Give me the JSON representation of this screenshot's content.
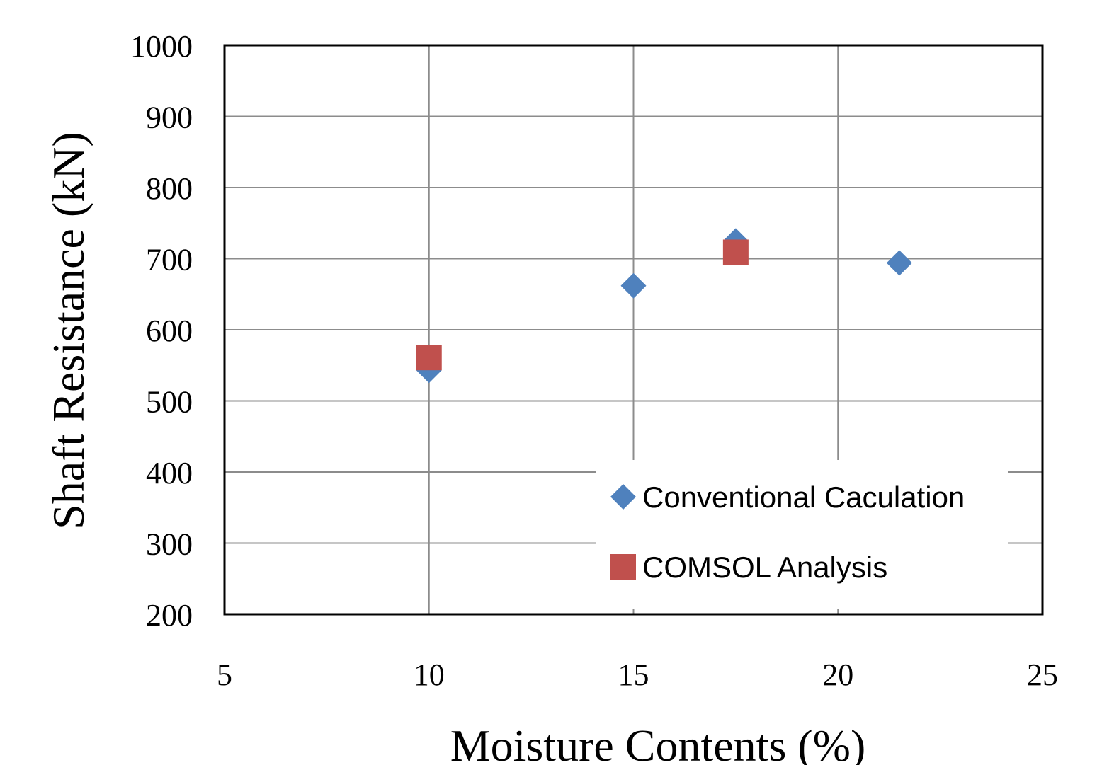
{
  "chart_data": {
    "type": "scatter",
    "title": "",
    "xlabel": "Moisture Contents (%)",
    "ylabel": "Shaft Resistance (kN)",
    "xlim": [
      5,
      25
    ],
    "ylim": [
      200,
      1000
    ],
    "xticks": [
      5,
      10,
      15,
      20,
      25
    ],
    "yticks": [
      200,
      300,
      400,
      500,
      600,
      700,
      800,
      900,
      1000
    ],
    "grid": true,
    "legend_position": "bottom-right",
    "series": [
      {
        "name": "Conventional Caculation",
        "marker": "diamond",
        "color": "#4f81bd",
        "x": [
          10,
          15,
          17.5,
          21.5
        ],
        "y": [
          543,
          662,
          725,
          694
        ]
      },
      {
        "name": "COMSOL Analysis",
        "marker": "square",
        "color": "#c0504d",
        "x": [
          10,
          17.5
        ],
        "y": [
          561,
          709
        ]
      }
    ]
  }
}
